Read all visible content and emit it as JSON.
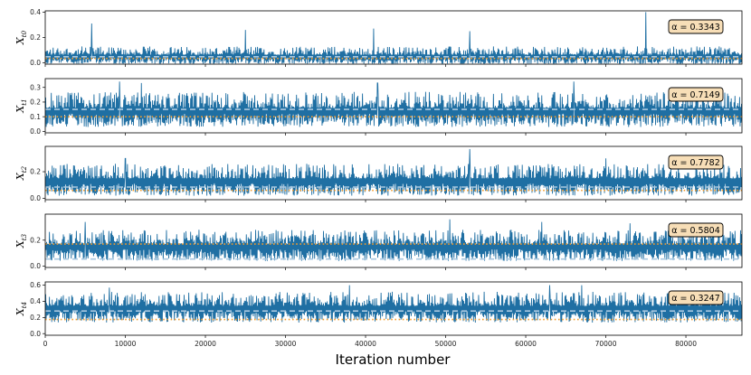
{
  "chart_data": {
    "type": "line",
    "xlabel": "Iteration number",
    "xlim": [
      0,
      87000
    ],
    "xticks": [
      0,
      10000,
      20000,
      30000,
      40000,
      50000,
      60000,
      70000,
      80000
    ],
    "xtick_labels": [
      "0",
      "10000",
      "20000",
      "30000",
      "40000",
      "50000",
      "60000",
      "70000",
      "80000"
    ],
    "trace_color": "#1f6fa3",
    "dashed_color": "#a9c8e0",
    "dotted_color": "#f39c2c",
    "alpha_box_color": "#f7deb7",
    "panels": [
      {
        "ylabel_main": "X",
        "ylabel_sub": "t0",
        "ylim": [
          -0.01,
          0.41
        ],
        "yticks": [
          0.0,
          0.2,
          0.4
        ],
        "ytick_labels": [
          "0.0",
          "0.2",
          "0.4"
        ],
        "alpha_label": "α = 0.3343",
        "trace_base": 0.04,
        "trace_spread": 0.06,
        "trace_max": 0.4,
        "dashed_level": 0.048,
        "dotted_level": 0.035,
        "spikes": [
          [
            5800,
            0.31
          ],
          [
            25000,
            0.26
          ],
          [
            41000,
            0.27
          ],
          [
            53000,
            0.25
          ],
          [
            75000,
            0.4
          ]
        ]
      },
      {
        "ylabel_main": "X",
        "ylabel_sub": "t1",
        "ylim": [
          -0.01,
          0.36
        ],
        "yticks": [
          0.0,
          0.1,
          0.2,
          0.3
        ],
        "ytick_labels": [
          "0.0",
          "0.1",
          "0.2",
          "0.3"
        ],
        "alpha_label": "α = 0.7149",
        "trace_base": 0.12,
        "trace_spread": 0.1,
        "trace_max": 0.34,
        "dashed_level": 0.15,
        "dotted_level": 0.1,
        "spikes": [
          [
            9300,
            0.34
          ],
          [
            12000,
            0.33
          ],
          [
            41500,
            0.33
          ],
          [
            66000,
            0.34
          ]
        ]
      },
      {
        "ylabel_main": "X",
        "ylabel_sub": "t2",
        "ylim": [
          -0.01,
          0.39
        ],
        "yticks": [
          0.0,
          0.2
        ],
        "ytick_labels": [
          "0.0",
          "0.2"
        ],
        "alpha_label": "α = 0.7782",
        "trace_base": 0.11,
        "trace_spread": 0.1,
        "trace_max": 0.37,
        "dashed_level": 0.085,
        "dotted_level": 0.06,
        "spikes": [
          [
            53000,
            0.37
          ],
          [
            10000,
            0.3
          ],
          [
            70000,
            0.3
          ]
        ]
      },
      {
        "ylabel_main": "X",
        "ylabel_sub": "t3",
        "ylim": [
          -0.01,
          0.4
        ],
        "yticks": [
          0.0,
          0.2
        ],
        "ytick_labels": [
          "0.0",
          "0.2"
        ],
        "alpha_label": "α = 0.5804",
        "trace_base": 0.13,
        "trace_spread": 0.1,
        "trace_max": 0.38,
        "dashed_level": 0.055,
        "dotted_level": 0.17,
        "spikes": [
          [
            5000,
            0.34
          ],
          [
            50500,
            0.36
          ],
          [
            62000,
            0.34
          ],
          [
            73000,
            0.33
          ]
        ]
      },
      {
        "ylabel_main": "X",
        "ylabel_sub": "t4",
        "ylim": [
          -0.02,
          0.64
        ],
        "yticks": [
          0.0,
          0.2,
          0.4,
          0.6
        ],
        "ytick_labels": [
          "0.0",
          "0.2",
          "0.4",
          "0.6"
        ],
        "alpha_label": "α = 0.3247",
        "trace_base": 0.28,
        "trace_spread": 0.16,
        "trace_max": 0.6,
        "dashed_level": 0.28,
        "dotted_level": 0.175,
        "spikes": [
          [
            8000,
            0.57
          ],
          [
            38000,
            0.6
          ],
          [
            63000,
            0.6
          ],
          [
            67000,
            0.6
          ]
        ]
      }
    ]
  }
}
